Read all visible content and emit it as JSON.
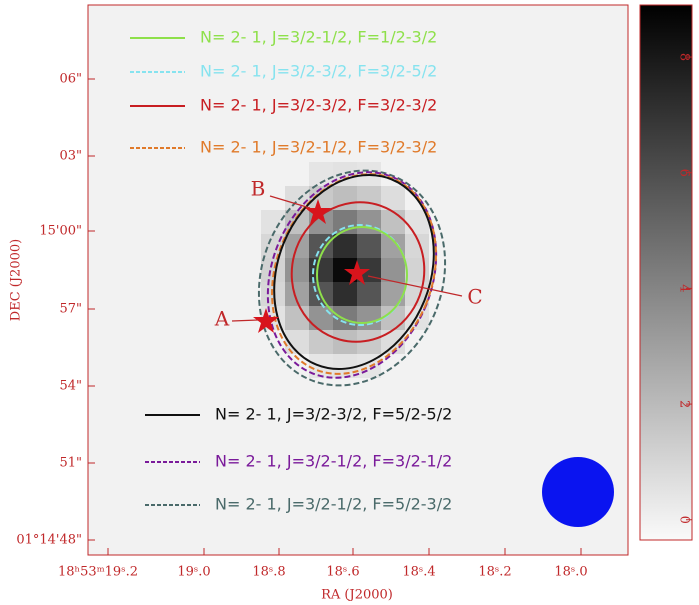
{
  "axes": {
    "x_label": "RA (J2000)",
    "y_label": "DEC (J2000)",
    "x_ticks": [
      "18ʰ53ᵐ19ˢ.2",
      "19ˢ.0",
      "18ˢ.8",
      "18ˢ.6",
      "18ˢ.4",
      "18ˢ.2",
      "18ˢ.0"
    ],
    "y_ticks": [
      "06\"",
      "03\"",
      "15'00\"",
      "57\"",
      "54\"",
      "51\"",
      "01°14'48\""
    ]
  },
  "legend": [
    {
      "label": "N= 2- 1, J=3/2-1/2, F=1/2-3/2",
      "color": "#8ee04a",
      "dash": "solid"
    },
    {
      "label": "N= 2- 1, J=3/2-3/2, F=3/2-5/2",
      "color": "#86e3ef",
      "dash": "dashed"
    },
    {
      "label": "N= 2- 1, J=3/2-3/2, F=3/2-3/2",
      "color": "#c81e22",
      "dash": "solid"
    },
    {
      "label": "N= 2- 1, J=3/2-1/2, F=3/2-3/2",
      "color": "#e07a2a",
      "dash": "dashed"
    },
    {
      "label": "N= 2- 1, J=3/2-3/2, F=5/2-5/2",
      "color": "#111111",
      "dash": "solid"
    },
    {
      "label": "N= 2- 1, J=3/2-1/2, F=3/2-1/2",
      "color": "#7a1a9a",
      "dash": "dashed"
    },
    {
      "label": "N= 2- 1, J=3/2-1/2, F=5/2-3/2",
      "color": "#4a6a6a",
      "dash": "dashed"
    }
  ],
  "annotations": [
    {
      "label": "A"
    },
    {
      "label": "B"
    },
    {
      "label": "C"
    }
  ],
  "colorbar": {
    "ylim": [
      -0.35,
      8.9
    ],
    "yticks": [
      0,
      2,
      4,
      6,
      8
    ]
  }
}
